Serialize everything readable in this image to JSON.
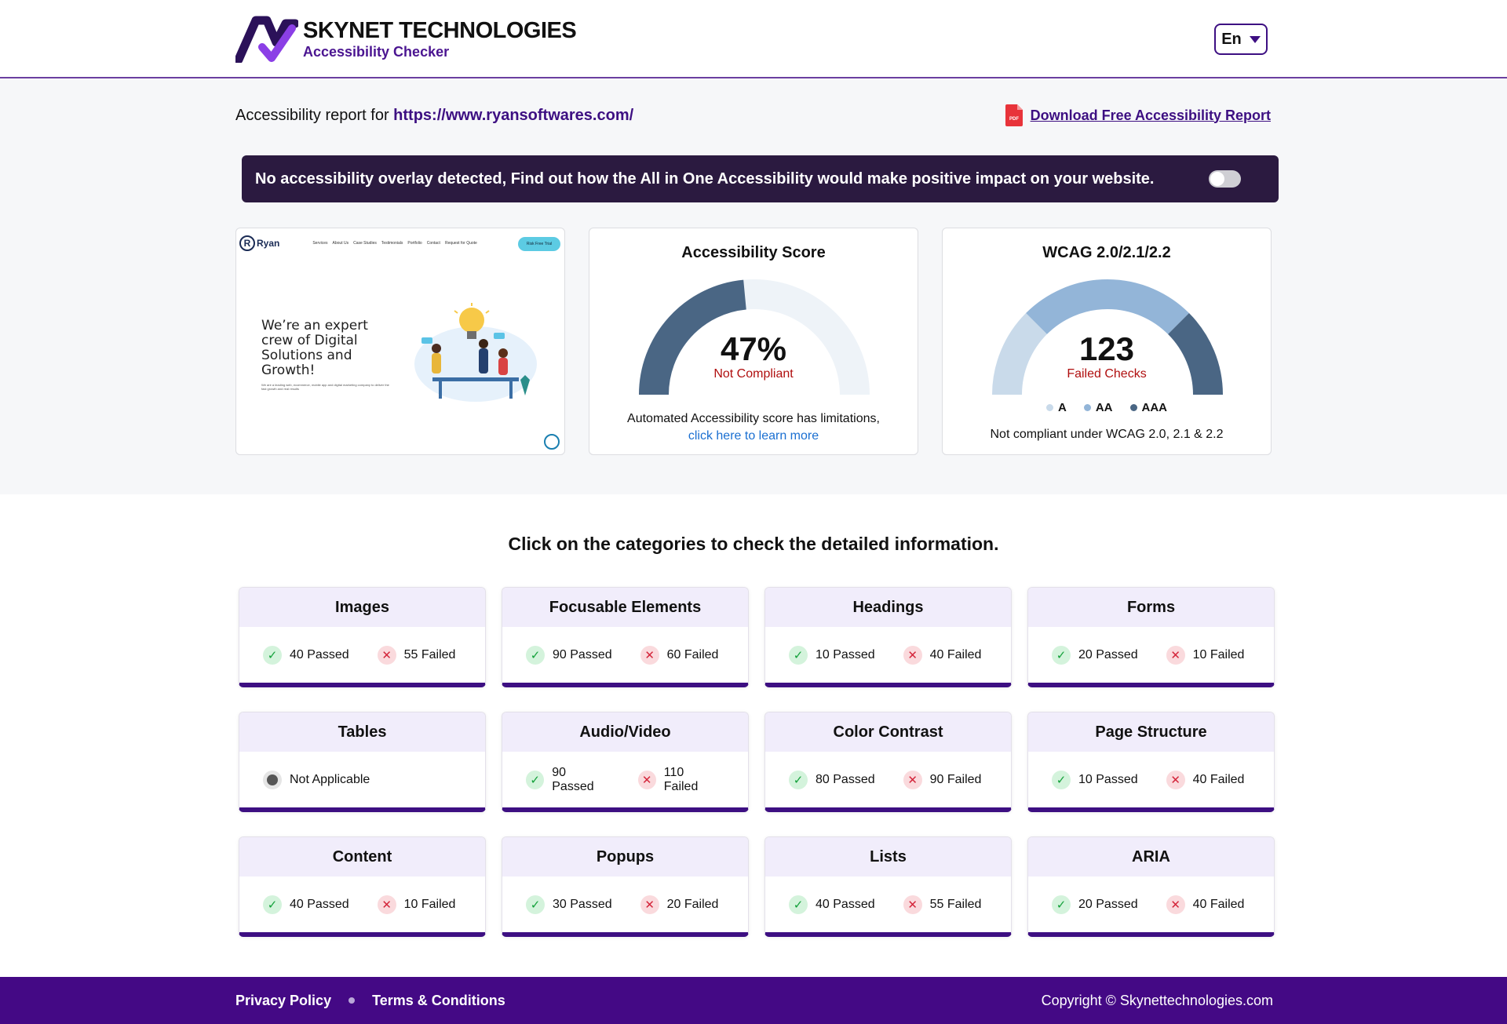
{
  "header": {
    "brand_title": "SKYNET TECHNOLOGIES",
    "brand_subtitle": "Accessibility Checker",
    "language": "En"
  },
  "report": {
    "prefix": "Accessibility report for ",
    "url": "https://www.ryansoftwares.com/",
    "download_label": "Download Free Accessibility Report",
    "overlay_message": "No accessibility overlay detected, Find out how the All in One Accessibility would make positive impact on your website.",
    "overlay_toggle_on": false
  },
  "screenshot": {
    "logo": "Ryan",
    "menu": [
      "Services",
      "About Us",
      "Case Studies",
      "Testimonials",
      "Portfolio",
      "Contact",
      "Request for Quote"
    ],
    "cta": "Risk Free Trial",
    "heading": "We’re an expert crew of Digital Solutions and Growth!",
    "subtext": "We are a leading web, ecommerce, mobile app and digital marketing company to deliver the fast growth and real results"
  },
  "score": {
    "title": "Accessibility Score",
    "value": "47%",
    "fraction": 0.47,
    "status": "Not Compliant",
    "note": "Automated Accessibility score has limitations,",
    "link": "click here to learn more"
  },
  "wcag": {
    "title": "WCAG 2.0/2.1/2.2",
    "failed_count": "123",
    "failed_label": "Failed Checks",
    "segments": [
      {
        "level": "A",
        "share": 0.25,
        "color": "#c9daea"
      },
      {
        "level": "AA",
        "share": 0.5,
        "color": "#93b5d8"
      },
      {
        "level": "AAA",
        "share": 0.25,
        "color": "#4a6684"
      }
    ],
    "note": "Not compliant under WCAG 2.0, 2.1 & 2.2"
  },
  "colors": {
    "brand": "#440985",
    "score_fill": "#4a6684",
    "score_track": "#eef3f8"
  },
  "categories": {
    "heading": "Click on the categories to check the detailed information.",
    "items": [
      {
        "name": "Images",
        "passed": "40 Passed",
        "failed": "55 Failed"
      },
      {
        "name": "Focusable Elements",
        "passed": "90 Passed",
        "failed": "60 Failed"
      },
      {
        "name": "Headings",
        "passed": "10 Passed",
        "failed": "40 Failed"
      },
      {
        "name": "Forms",
        "passed": "20 Passed",
        "failed": "10 Failed"
      },
      {
        "name": "Tables",
        "status": "Not Applicable"
      },
      {
        "name": "Audio/Video",
        "passed": "90 Passed",
        "failed": "110 Failed"
      },
      {
        "name": "Color Contrast",
        "passed": "80 Passed",
        "failed": "90 Failed"
      },
      {
        "name": "Page Structure",
        "passed": "10 Passed",
        "failed": "40 Failed"
      },
      {
        "name": "Content",
        "passed": "40 Passed",
        "failed": "10 Failed"
      },
      {
        "name": "Popups",
        "passed": "30 Passed",
        "failed": "20 Failed"
      },
      {
        "name": "Lists",
        "passed": "40 Passed",
        "failed": "55 Failed"
      },
      {
        "name": "ARIA",
        "passed": "20 Passed",
        "failed": "40 Failed"
      }
    ]
  },
  "footer": {
    "privacy": "Privacy Policy",
    "terms": "Terms & Conditions",
    "copyright": "Copyright © Skynettechnologies.com"
  }
}
